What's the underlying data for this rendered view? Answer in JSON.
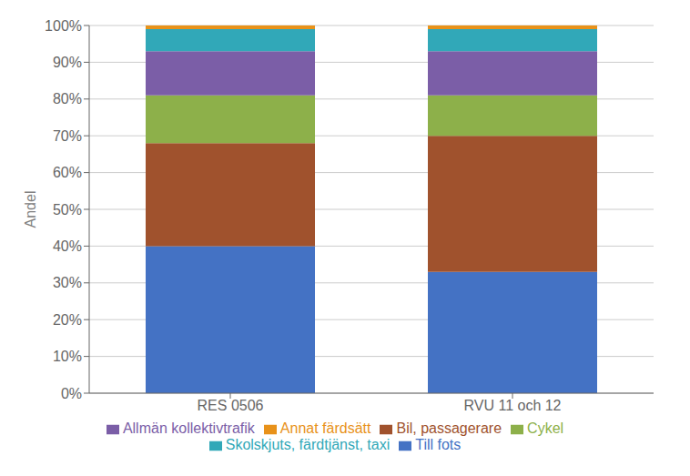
{
  "chart_data": {
    "type": "bar",
    "stacked": true,
    "categories": [
      "RES 0506",
      "RVU 11 och 12"
    ],
    "series": [
      {
        "name": "Till fots",
        "color": "#4472C4",
        "values": [
          40,
          33
        ]
      },
      {
        "name": "Bil, passagerare",
        "color": "#A0522D",
        "values": [
          28,
          37
        ]
      },
      {
        "name": "Cykel",
        "color": "#8DB04A",
        "values": [
          13,
          11
        ]
      },
      {
        "name": "Allmän kollektivtrafik",
        "color": "#7B5EA7",
        "values": [
          12,
          12
        ]
      },
      {
        "name": "Skolskjuts, färdtjänst, taxi",
        "color": "#31A8B8",
        "values": [
          6,
          6
        ]
      },
      {
        "name": "Annat färdsätt",
        "color": "#E8921A",
        "values": [
          1,
          1
        ]
      }
    ],
    "ylabel": "Andel",
    "ylim": [
      0,
      100
    ],
    "yticks": [
      {
        "value": 0,
        "label": "0%"
      },
      {
        "value": 10,
        "label": "10%"
      },
      {
        "value": 20,
        "label": "20%"
      },
      {
        "value": 30,
        "label": "30%"
      },
      {
        "value": 40,
        "label": "40%"
      },
      {
        "value": 50,
        "label": "50%"
      },
      {
        "value": 60,
        "label": "60%"
      },
      {
        "value": 70,
        "label": "70%"
      },
      {
        "value": 80,
        "label": "80%"
      },
      {
        "value": 90,
        "label": "90%"
      },
      {
        "value": 100,
        "label": "100%"
      }
    ],
    "grid": true,
    "legend": "bottom"
  }
}
